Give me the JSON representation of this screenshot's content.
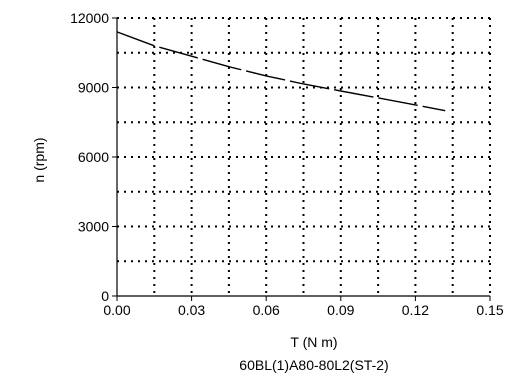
{
  "chart_data": {
    "type": "line",
    "title": "",
    "caption": "60BL(1)A80-80L2(ST-2)",
    "xlabel": "T (N m)",
    "ylabel": "n (rpm)",
    "xlim": [
      0,
      0.15
    ],
    "ylim": [
      0,
      12000
    ],
    "x_ticks": [
      0,
      0.03,
      0.06,
      0.09,
      0.12,
      0.15
    ],
    "x_tick_labels": [
      "0.00",
      "0.03",
      "0.06",
      "0.09",
      "0.12",
      "0.15"
    ],
    "y_ticks": [
      0,
      3000,
      6000,
      9000,
      12000
    ],
    "y_tick_labels": [
      "0",
      "3000",
      "6000",
      "9000",
      "12000"
    ],
    "x_minor_ticks": [
      0.015,
      0.045,
      0.075,
      0.105,
      0.135
    ],
    "y_minor_ticks": [
      1500,
      4500,
      7500,
      10500
    ],
    "grid": "dotted",
    "line_style": "dashed",
    "colors": {
      "line": "#000000",
      "grid": "#000000",
      "axis": "#000000"
    },
    "series": [
      {
        "x": [
          0.0,
          0.015,
          0.03,
          0.045,
          0.06,
          0.075,
          0.09,
          0.105,
          0.12,
          0.132
        ],
        "values": [
          11400,
          10800,
          10350,
          9900,
          9500,
          9150,
          8850,
          8550,
          8250,
          8000
        ]
      }
    ]
  }
}
